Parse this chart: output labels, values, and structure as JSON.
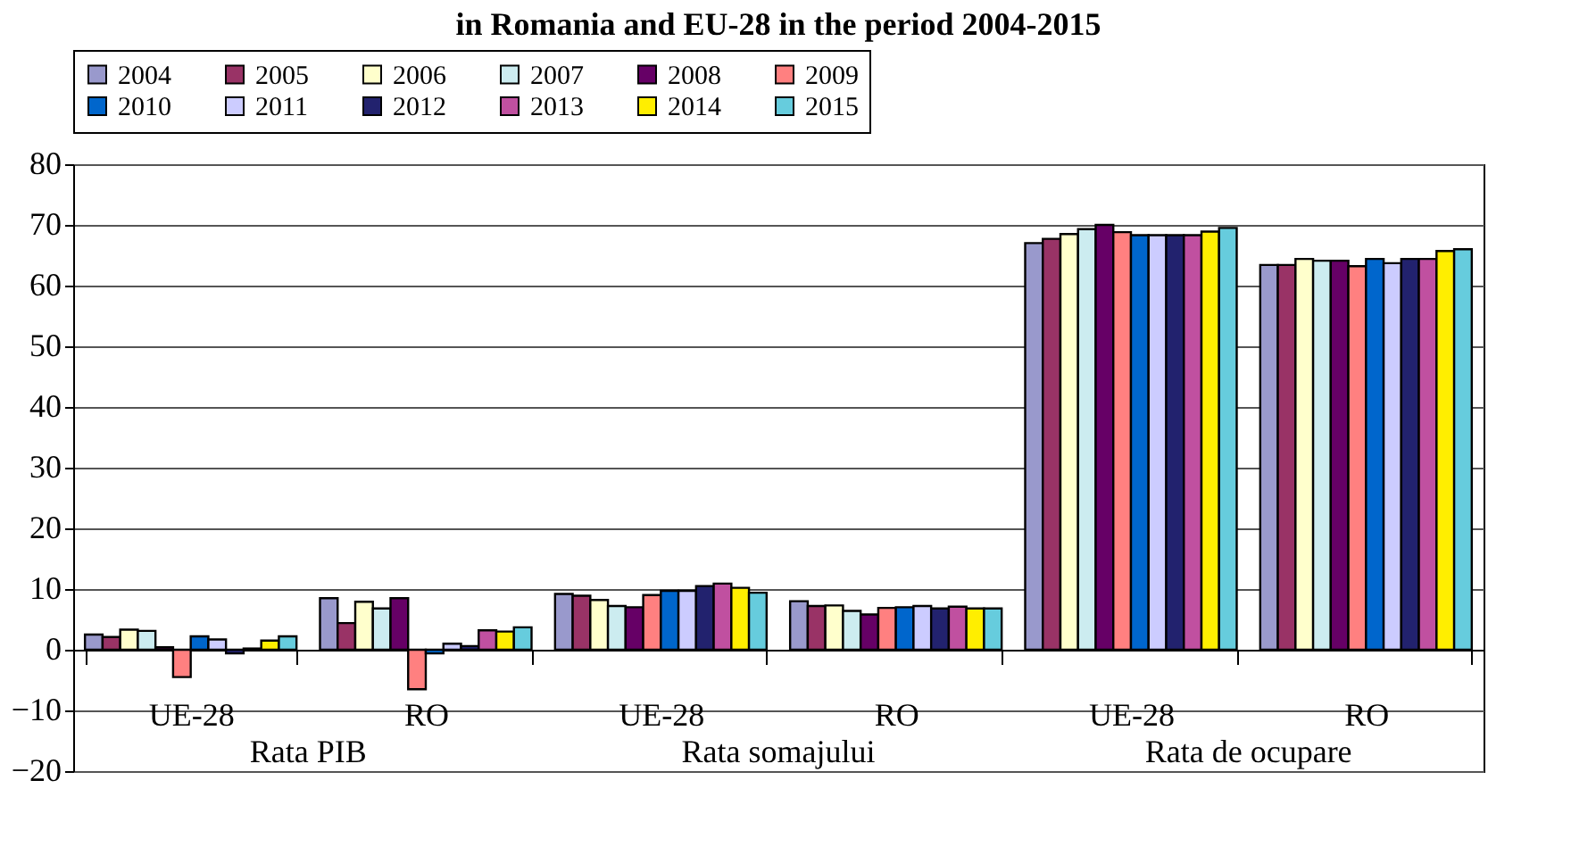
{
  "chart_data": {
    "type": "bar",
    "title": "in Romania and EU-28 in the period 2004-2015",
    "categories": [
      "UE-28",
      "RO",
      "UE-28",
      "RO",
      "UE-28",
      "RO"
    ],
    "annotations": [
      "Rata PIB",
      "Rata somajului",
      "Rata de ocupare"
    ],
    "series": [
      {
        "name": "2004",
        "color": "#9999cc",
        "values": [
          2.5,
          8.5,
          9.2,
          8.0,
          67.0,
          63.4
        ]
      },
      {
        "name": "2005",
        "color": "#993366",
        "values": [
          2.1,
          4.4,
          8.9,
          7.2,
          67.7,
          63.4
        ]
      },
      {
        "name": "2006",
        "color": "#ffffcc",
        "values": [
          3.3,
          7.9,
          8.2,
          7.3,
          68.5,
          64.4
        ]
      },
      {
        "name": "2007",
        "color": "#ccecf0",
        "values": [
          3.1,
          6.8,
          7.2,
          6.4,
          69.3,
          64.1
        ]
      },
      {
        "name": "2008",
        "color": "#660066",
        "values": [
          0.4,
          8.5,
          7.0,
          5.8,
          70.0,
          64.1
        ]
      },
      {
        "name": "2009",
        "color": "#ff8080",
        "values": [
          -4.5,
          -6.5,
          9.0,
          6.9,
          68.8,
          63.2
        ]
      },
      {
        "name": "2010",
        "color": "#0066cc",
        "values": [
          2.2,
          -0.6,
          9.7,
          7.0,
          68.3,
          64.4
        ]
      },
      {
        "name": "2011",
        "color": "#ccccff",
        "values": [
          1.7,
          1.0,
          9.7,
          7.2,
          68.3,
          63.7
        ]
      },
      {
        "name": "2012",
        "color": "#22226e",
        "values": [
          -0.6,
          0.6,
          10.5,
          6.8,
          68.3,
          64.4
        ]
      },
      {
        "name": "2013",
        "color": "#c050a0",
        "values": [
          0.2,
          3.2,
          10.9,
          7.1,
          68.3,
          64.4
        ]
      },
      {
        "name": "2014",
        "color": "#ffee00",
        "values": [
          1.5,
          3.0,
          10.2,
          6.8,
          68.9,
          65.7
        ]
      },
      {
        "name": "2015",
        "color": "#66ccdd",
        "values": [
          2.2,
          3.7,
          9.4,
          6.8,
          69.5,
          66.0
        ]
      }
    ],
    "ylim": [
      -20,
      80
    ],
    "yticks": [
      -20,
      -10,
      0,
      10,
      20,
      30,
      40,
      50,
      60,
      70,
      80
    ],
    "grid": "y",
    "legend": "top"
  }
}
